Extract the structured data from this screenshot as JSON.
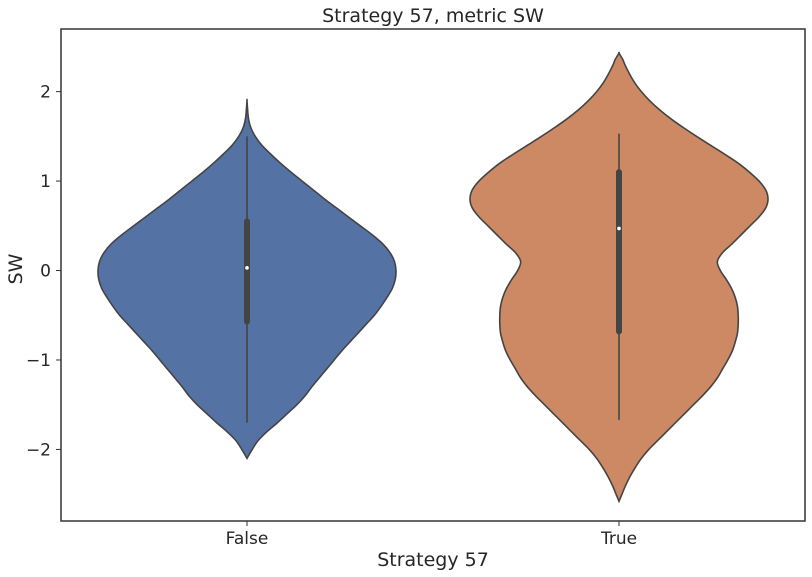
{
  "chart_data": {
    "type": "violin",
    "title": "Strategy 57, metric SW",
    "xlabel": "Strategy 57",
    "ylabel": "SW",
    "categories": [
      "False",
      "True"
    ],
    "ylim": [
      -2.8,
      2.7
    ],
    "yticks": [
      -2,
      -1,
      0,
      1,
      2
    ],
    "ytick_labels": [
      "−2",
      "−1",
      "0",
      "1",
      "2"
    ],
    "grid": false,
    "violins": [
      {
        "category": "False",
        "color": "#5572a4",
        "extent": [
          -2.1,
          1.9
        ],
        "whisker": [
          -1.7,
          1.5
        ],
        "quartiles": [
          -0.57,
          0.55
        ],
        "median": 0.03,
        "density_profile": [
          [
            -2.1,
            0.0
          ],
          [
            -2.0,
            0.035
          ],
          [
            -1.9,
            0.075
          ],
          [
            -1.8,
            0.135
          ],
          [
            -1.7,
            0.205
          ],
          [
            -1.6,
            0.27
          ],
          [
            -1.5,
            0.335
          ],
          [
            -1.4,
            0.39
          ],
          [
            -1.3,
            0.435
          ],
          [
            -1.2,
            0.485
          ],
          [
            -1.1,
            0.535
          ],
          [
            -1.0,
            0.585
          ],
          [
            -0.9,
            0.635
          ],
          [
            -0.8,
            0.69
          ],
          [
            -0.7,
            0.745
          ],
          [
            -0.6,
            0.8
          ],
          [
            -0.5,
            0.855
          ],
          [
            -0.4,
            0.9
          ],
          [
            -0.3,
            0.94
          ],
          [
            -0.2,
            0.975
          ],
          [
            -0.1,
            0.995
          ],
          [
            0.0,
            1.0
          ],
          [
            0.1,
            0.99
          ],
          [
            0.2,
            0.96
          ],
          [
            0.3,
            0.91
          ],
          [
            0.4,
            0.84
          ],
          [
            0.5,
            0.76
          ],
          [
            0.6,
            0.68
          ],
          [
            0.7,
            0.6
          ],
          [
            0.8,
            0.52
          ],
          [
            0.9,
            0.445
          ],
          [
            1.0,
            0.37
          ],
          [
            1.1,
            0.295
          ],
          [
            1.2,
            0.225
          ],
          [
            1.3,
            0.16
          ],
          [
            1.4,
            0.1
          ],
          [
            1.5,
            0.055
          ],
          [
            1.6,
            0.025
          ],
          [
            1.7,
            0.01
          ],
          [
            1.8,
            0.004
          ],
          [
            1.9,
            0.0
          ]
        ]
      },
      {
        "category": "True",
        "color": "#cc8963",
        "extent": [
          -2.58,
          2.43
        ],
        "whisker": [
          -1.67,
          1.53
        ],
        "quartiles": [
          -0.68,
          1.1
        ],
        "median": 0.47,
        "density_profile": [
          [
            -2.58,
            0.0
          ],
          [
            -2.5,
            0.02
          ],
          [
            -2.4,
            0.045
          ],
          [
            -2.3,
            0.075
          ],
          [
            -2.2,
            0.11
          ],
          [
            -2.1,
            0.15
          ],
          [
            -2.0,
            0.2
          ],
          [
            -1.9,
            0.26
          ],
          [
            -1.8,
            0.32
          ],
          [
            -1.7,
            0.38
          ],
          [
            -1.6,
            0.44
          ],
          [
            -1.5,
            0.5
          ],
          [
            -1.4,
            0.56
          ],
          [
            -1.3,
            0.615
          ],
          [
            -1.2,
            0.66
          ],
          [
            -1.1,
            0.695
          ],
          [
            -1.0,
            0.73
          ],
          [
            -0.9,
            0.76
          ],
          [
            -0.8,
            0.78
          ],
          [
            -0.7,
            0.795
          ],
          [
            -0.6,
            0.8
          ],
          [
            -0.5,
            0.8
          ],
          [
            -0.4,
            0.795
          ],
          [
            -0.3,
            0.78
          ],
          [
            -0.2,
            0.755
          ],
          [
            -0.1,
            0.72
          ],
          [
            0.0,
            0.68
          ],
          [
            0.1,
            0.66
          ],
          [
            0.2,
            0.695
          ],
          [
            0.3,
            0.76
          ],
          [
            0.4,
            0.82
          ],
          [
            0.5,
            0.88
          ],
          [
            0.6,
            0.94
          ],
          [
            0.7,
            0.985
          ],
          [
            0.8,
            1.0
          ],
          [
            0.9,
            0.985
          ],
          [
            1.0,
            0.94
          ],
          [
            1.1,
            0.875
          ],
          [
            1.2,
            0.8
          ],
          [
            1.3,
            0.71
          ],
          [
            1.4,
            0.615
          ],
          [
            1.5,
            0.52
          ],
          [
            1.6,
            0.43
          ],
          [
            1.7,
            0.345
          ],
          [
            1.8,
            0.27
          ],
          [
            1.9,
            0.205
          ],
          [
            2.0,
            0.15
          ],
          [
            2.1,
            0.105
          ],
          [
            2.2,
            0.07
          ],
          [
            2.3,
            0.04
          ],
          [
            2.36,
            0.025
          ],
          [
            2.43,
            0.0
          ]
        ]
      }
    ]
  }
}
